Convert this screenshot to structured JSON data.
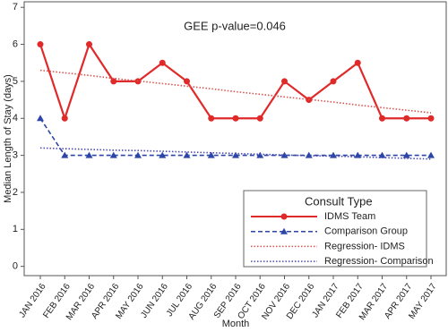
{
  "chart_data": {
    "type": "line",
    "annotation": "GEE p-value=0.046",
    "x_label": "Month",
    "y_label": "Median Length of Stay (days)",
    "legend_title": "Consult Type",
    "legend_position": "lower right",
    "categories": [
      "JAN 2016",
      "FEB 2016",
      "MAR 2016",
      "APR 2016",
      "MAY 2016",
      "JUN 2016",
      "JUL 2016",
      "AUG 2016",
      "SEP 2016",
      "OCT 2016",
      "NOV 2016",
      "DEC 2016",
      "JAN 2017",
      "FEB 2017",
      "MAR 2017",
      "APR 2017",
      "MAY 2017"
    ],
    "series": [
      {
        "name": "IDMS Team",
        "color": "#e02a2a",
        "style": "solid",
        "marker": "circle",
        "values": [
          6,
          4,
          6,
          5,
          5,
          5.5,
          5,
          4,
          4,
          4,
          5,
          4.5,
          5,
          5.5,
          4,
          4,
          4
        ]
      },
      {
        "name": "Comparison Group",
        "color": "#2b46a6",
        "style": "dashed",
        "marker": "triangle",
        "values": [
          4,
          3,
          3,
          3,
          3,
          3,
          3,
          3,
          3,
          3,
          3,
          3,
          3,
          3,
          3,
          3,
          3
        ]
      },
      {
        "name": "Regression- IDMS",
        "color": "#d9534f",
        "style": "dotted",
        "values": [
          5.3,
          5.23,
          5.16,
          5.08,
          5.01,
          4.94,
          4.87,
          4.8,
          4.72,
          4.65,
          4.58,
          4.51,
          4.44,
          4.36,
          4.29,
          4.22,
          4.15
        ]
      },
      {
        "name": "Regression- Comparison",
        "color": "#4a4ab0",
        "style": "dotted",
        "values": [
          3.2,
          3.18,
          3.16,
          3.14,
          3.13,
          3.11,
          3.09,
          3.07,
          3.05,
          3.03,
          3.01,
          2.99,
          2.98,
          2.96,
          2.94,
          2.92,
          2.9
        ]
      }
    ],
    "ylim": [
      -0.25,
      7.15
    ],
    "yticks": [
      0,
      1,
      2,
      3,
      4,
      5,
      6,
      7
    ],
    "grid": false
  }
}
